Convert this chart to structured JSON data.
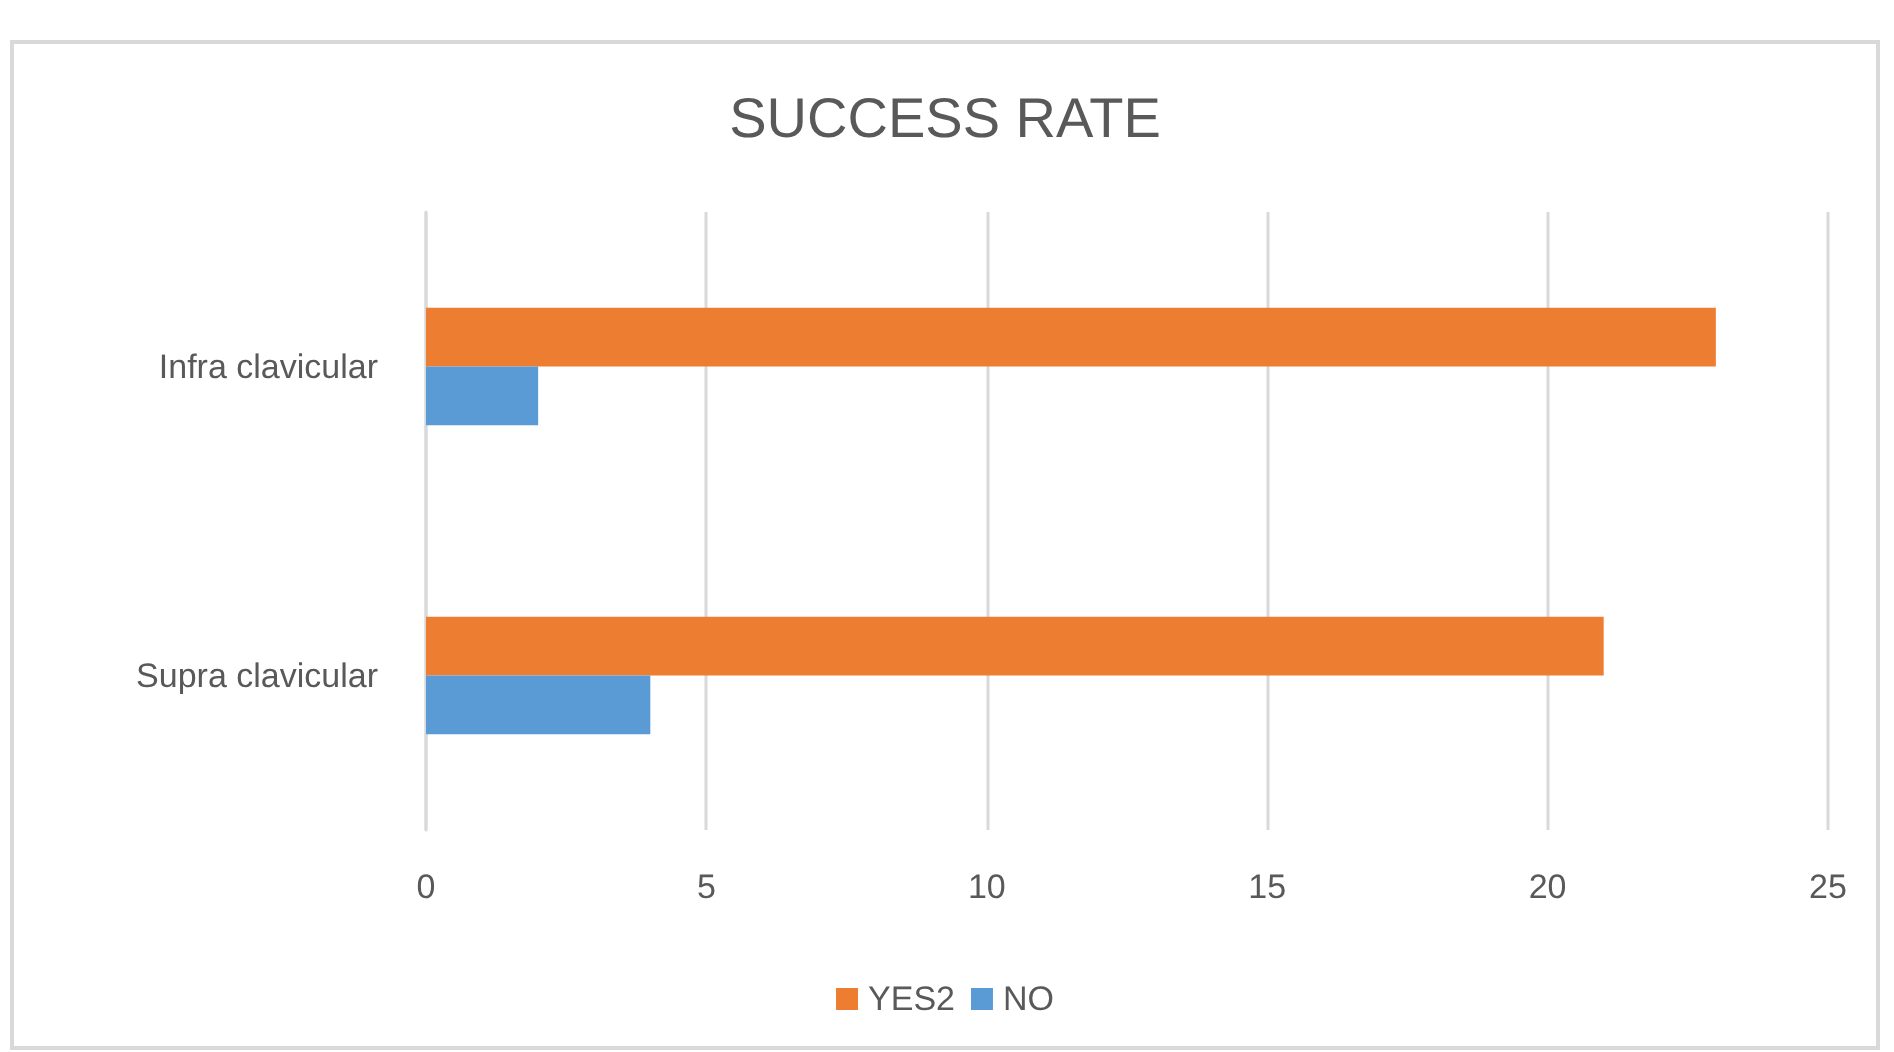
{
  "chart_data": {
    "type": "bar",
    "orientation": "horizontal",
    "title": "SUCCESS RATE",
    "categories": [
      "Infra clavicular",
      "Supra clavicular"
    ],
    "series": [
      {
        "name": "YES2",
        "color": "#ed7d31",
        "values": [
          23,
          21
        ]
      },
      {
        "name": "NO",
        "color": "#5b9bd5",
        "values": [
          2,
          4
        ]
      }
    ],
    "xlim": [
      0,
      25
    ],
    "xticks": [
      0,
      5,
      10,
      15,
      20,
      25
    ],
    "grid": "x",
    "legend": "bottom"
  }
}
